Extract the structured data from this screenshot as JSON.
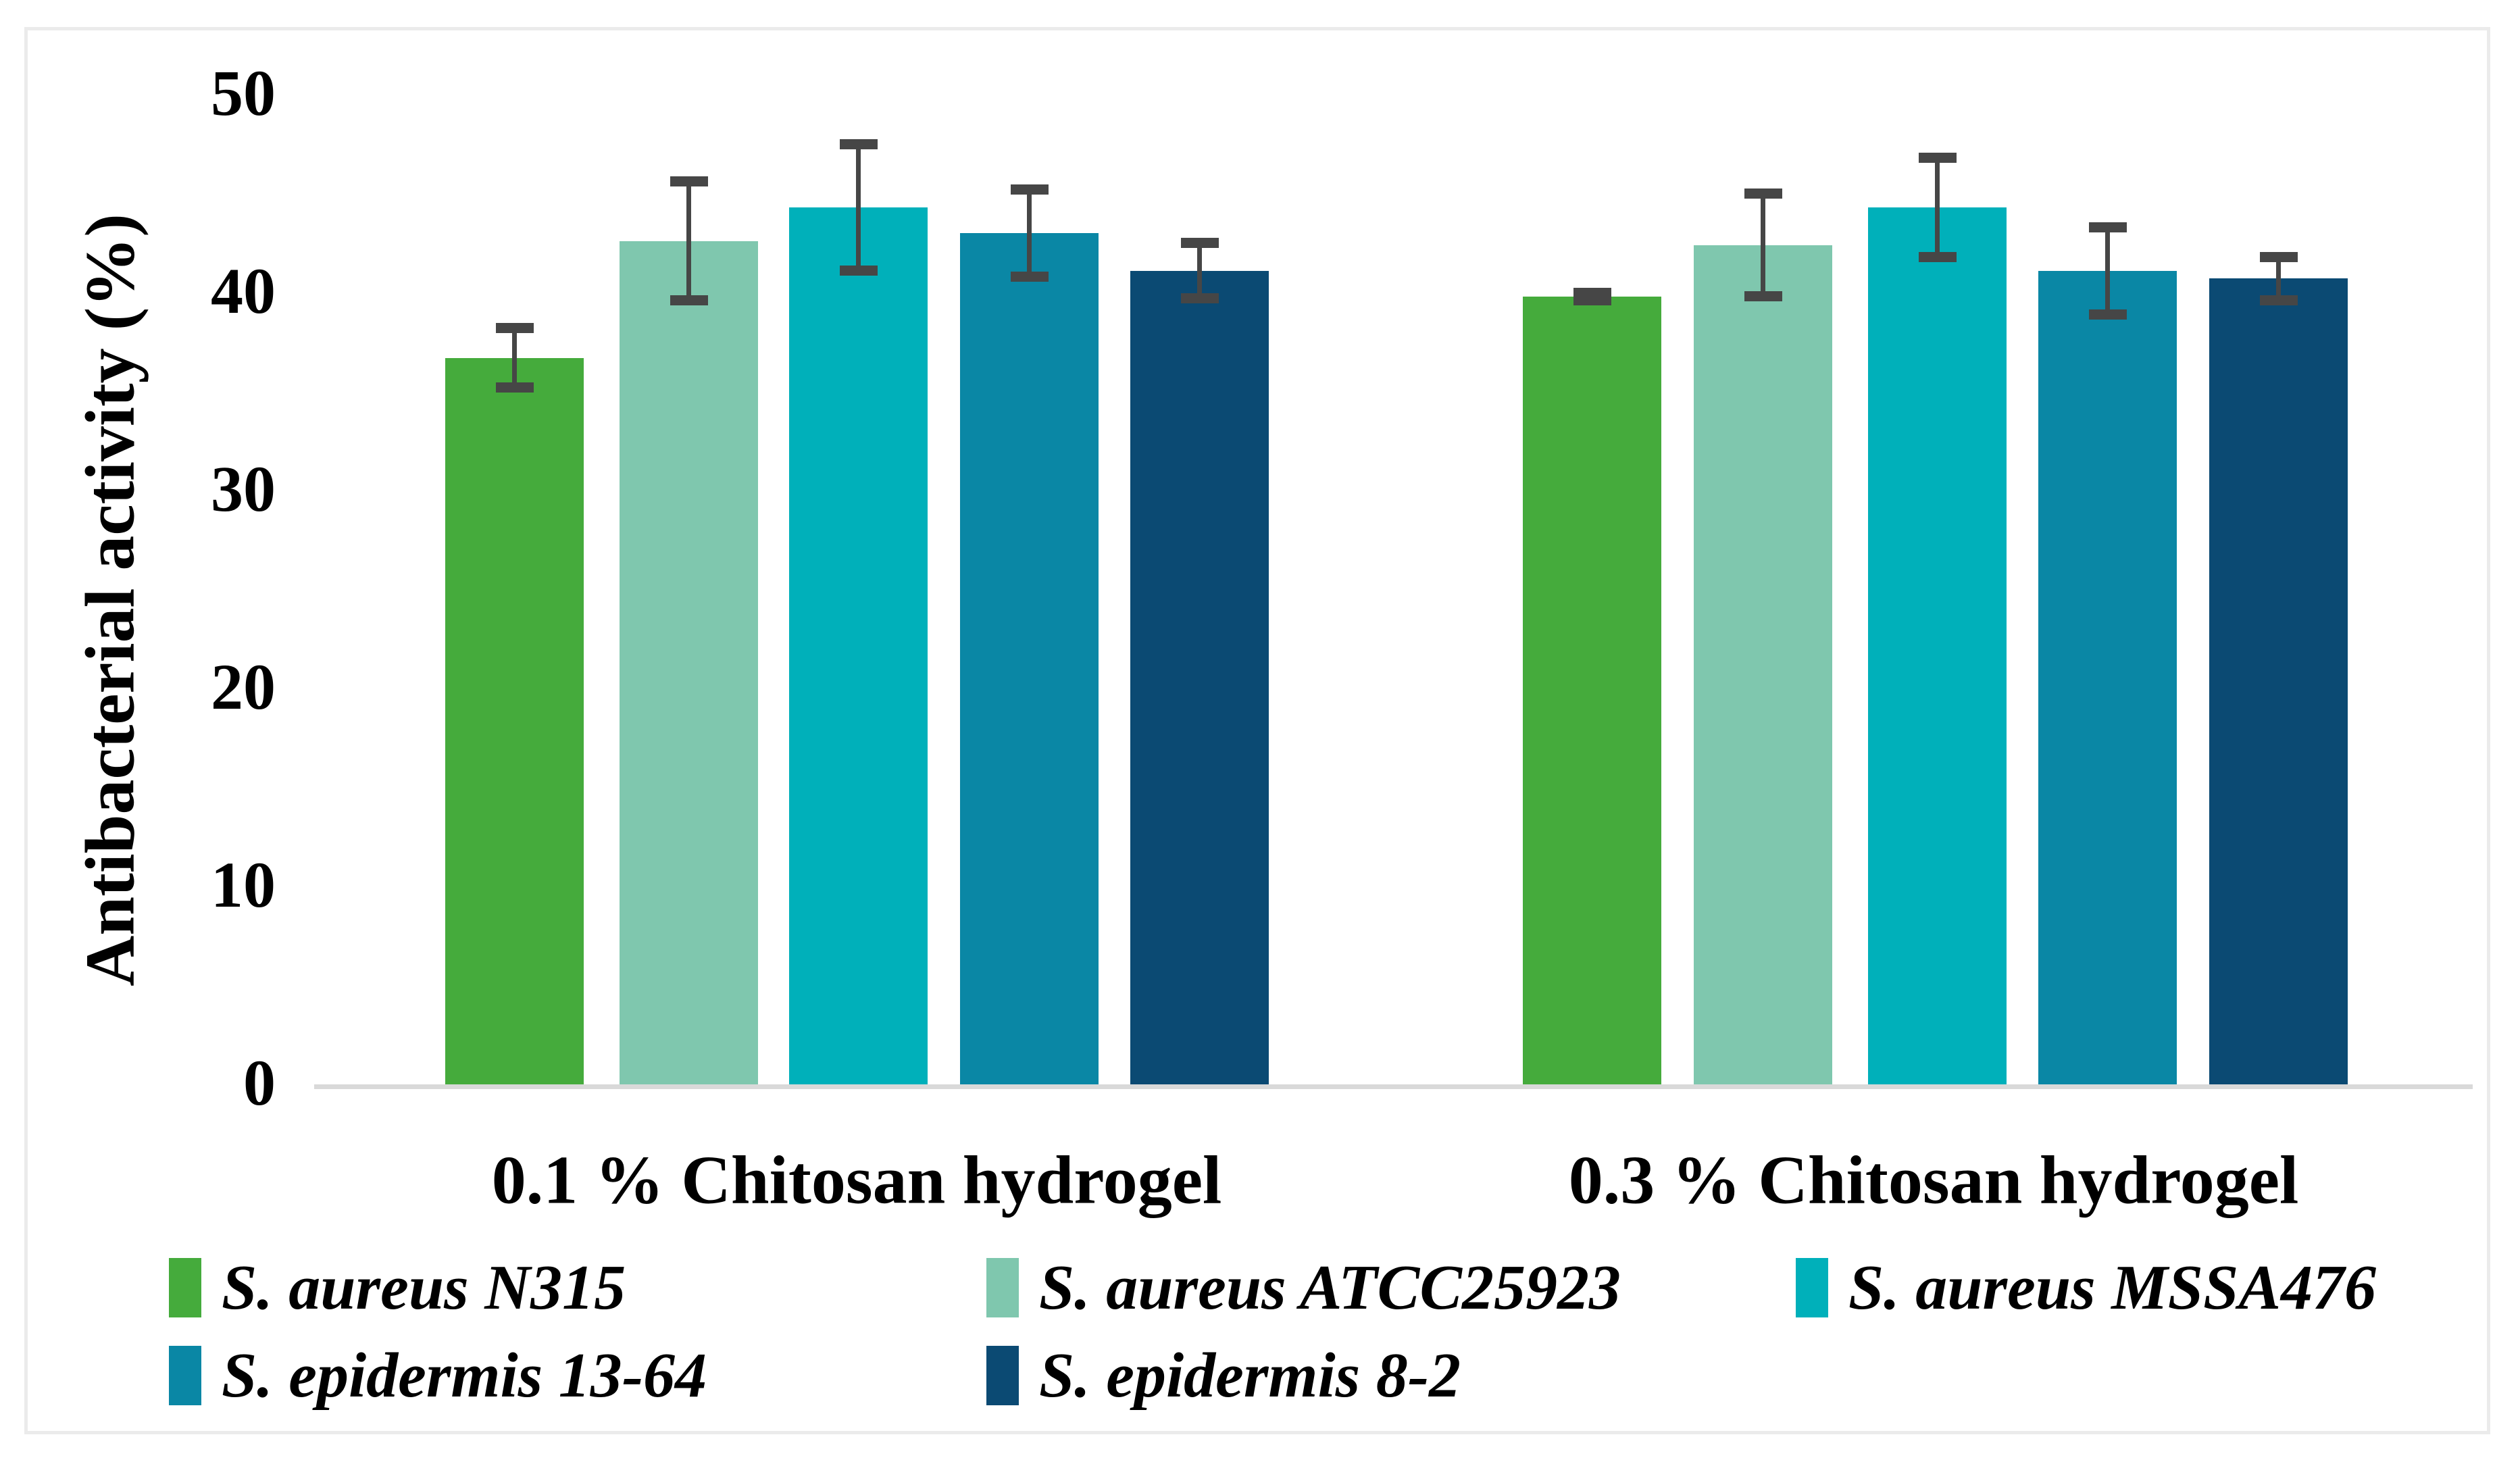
{
  "figure": {
    "background_color": "#ffffff",
    "border_color": "#ebebeb"
  },
  "chart_data": {
    "type": "bar",
    "title": "",
    "xlabel": "",
    "ylabel": "Antibacterial activity (%)",
    "ylim": [
      0,
      50
    ],
    "yticks": [
      "0",
      "10",
      "20",
      "30",
      "40",
      "50"
    ],
    "ytick_values": [
      0,
      10,
      20,
      30,
      40,
      50
    ],
    "grid": false,
    "legend_position": "bottom",
    "categories": [
      "0.1 % Chitosan hydrogel",
      "0.3 % Chitosan hydrogel"
    ],
    "series": [
      {
        "name": "S. aureus N315",
        "color": "#45ab3c",
        "values": [
          36.7,
          39.8
        ],
        "errors": [
          1.5,
          0.2
        ]
      },
      {
        "name": "S. aureus ATCC25923",
        "color": "#7fc7ae",
        "values": [
          42.6,
          42.4
        ],
        "errors": [
          3.0,
          2.6
        ]
      },
      {
        "name": "S. aureus MSSA476",
        "color": "#00b0ba",
        "values": [
          44.3,
          44.3
        ],
        "errors": [
          3.2,
          2.5
        ]
      },
      {
        "name": "S. epidermis 13-64",
        "color": "#0a87a5",
        "values": [
          43.0,
          41.1
        ],
        "errors": [
          2.2,
          2.2
        ]
      },
      {
        "name": "S. epidermis 8-2",
        "color": "#0b4a73",
        "values": [
          41.1,
          40.7
        ],
        "errors": [
          1.4,
          1.1
        ]
      }
    ],
    "error_bar_color": "#464646",
    "axis_line_color": "#d9d9d9",
    "text_color": "#000000"
  }
}
